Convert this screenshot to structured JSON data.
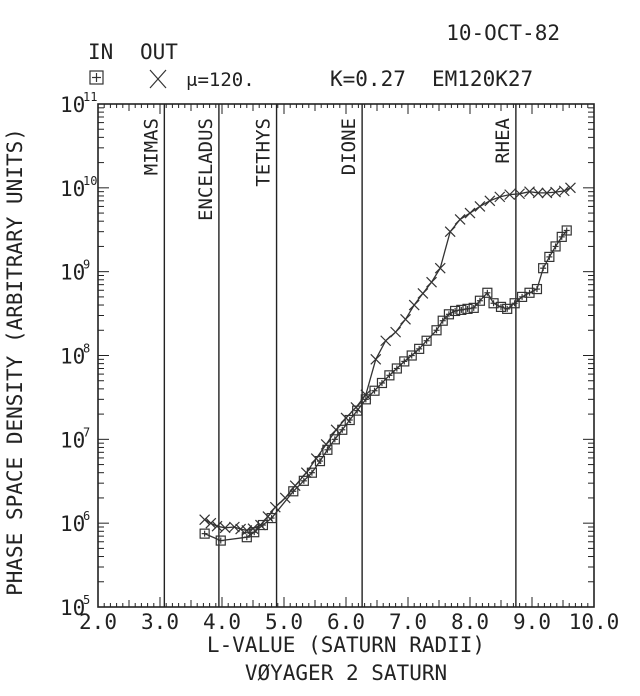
{
  "chart_data": {
    "type": "scatter",
    "date": "10-OCT-82",
    "legend": {
      "header_in": "IN",
      "header_out": "OUT",
      "mu_text": "μ=120.",
      "k_text": "K=0.27",
      "code": "EM120K27"
    },
    "xlabel": "L-VALUE (SATURN RADII)",
    "ylabel": "PHASE SPACE DENSITY (ARBITRARY UNITS)",
    "caption": "VØYAGER 2 SATURN",
    "xlim": [
      2.0,
      10.0
    ],
    "ylim": [
      100000,
      100000000000
    ],
    "log_y": true,
    "x_ticks": [
      2.0,
      3.0,
      4.0,
      5.0,
      6.0,
      7.0,
      8.0,
      9.0,
      10.0
    ],
    "x_tick_labels": [
      "2.0",
      "3.0",
      "4.0",
      "5.0",
      "6.0",
      "7.0",
      "8.0",
      "9.0",
      "10.0"
    ],
    "y_ticks": [
      {
        "value": 100000,
        "base": "10",
        "exp": "5"
      },
      {
        "value": 1000000,
        "base": "10",
        "exp": "6"
      },
      {
        "value": 10000000,
        "base": "10",
        "exp": "7"
      },
      {
        "value": 100000000,
        "base": "10",
        "exp": "8"
      },
      {
        "value": 1000000000,
        "base": "10",
        "exp": "9"
      },
      {
        "value": 10000000000,
        "base": "10",
        "exp": "10"
      },
      {
        "value": 100000000000,
        "base": "10",
        "exp": "11"
      }
    ],
    "moons": [
      {
        "name": "MIMAS",
        "l": 3.07
      },
      {
        "name": "ENCELADUS",
        "l": 3.95
      },
      {
        "name": "TETHYS",
        "l": 4.88
      },
      {
        "name": "DIONE",
        "l": 6.26
      },
      {
        "name": "RHEA",
        "l": 8.74
      }
    ],
    "series": [
      {
        "name": "IN",
        "marker": "square",
        "x": [
          3.72,
          3.98,
          4.4,
          4.52,
          4.66,
          4.8,
          5.15,
          5.32,
          5.45,
          5.58,
          5.7,
          5.82,
          5.94,
          6.06,
          6.18,
          6.32,
          6.46,
          6.58,
          6.7,
          6.82,
          6.94,
          7.06,
          7.18,
          7.3,
          7.46,
          7.56,
          7.66,
          7.76,
          7.86,
          7.96,
          8.06,
          8.16,
          8.28,
          8.38,
          8.5,
          8.6,
          8.72,
          8.84,
          8.96,
          9.08,
          9.18,
          9.28,
          9.38,
          9.48,
          9.56
        ],
        "y": [
          750000,
          620000,
          680000,
          780000,
          950000,
          1150000,
          2400000,
          3200000,
          4000000,
          5500000,
          7500000,
          10000000,
          13000000,
          17000000,
          22000000,
          30000000,
          38000000,
          47000000,
          58000000,
          70000000,
          85000000,
          100000000,
          120000000,
          150000000,
          200000000,
          260000000,
          310000000,
          340000000,
          350000000,
          360000000,
          370000000,
          450000000,
          560000000,
          420000000,
          380000000,
          360000000,
          420000000,
          500000000,
          560000000,
          620000000,
          1100000000,
          1500000000,
          2000000000,
          2600000000,
          3100000000
        ]
      },
      {
        "name": "OUT",
        "marker": "x",
        "x": [
          3.72,
          3.82,
          3.92,
          4.05,
          4.2,
          4.3,
          4.4,
          4.5,
          4.62,
          4.74,
          4.86,
          5.02,
          5.18,
          5.36,
          5.52,
          5.68,
          5.84,
          6.0,
          6.16,
          6.32,
          6.48,
          6.64,
          6.8,
          6.96,
          7.1,
          7.24,
          7.38,
          7.52,
          7.68,
          7.84,
          8.0,
          8.16,
          8.32,
          8.48,
          8.64,
          8.8,
          8.96,
          9.1,
          9.24,
          9.38,
          9.52,
          9.62
        ],
        "y": [
          1100000,
          1000000,
          920000,
          880000,
          900000,
          850000,
          820000,
          860000,
          950000,
          1200000,
          1550000,
          2000000,
          2800000,
          4000000,
          5900000,
          8700000,
          13000000,
          18000000,
          24000000,
          34000000,
          90000000,
          150000000,
          190000000,
          270000000,
          400000000,
          550000000,
          750000000,
          1100000000,
          3000000000,
          4200000000,
          5000000000,
          6000000000,
          7000000000,
          7800000000,
          8300000000,
          8500000000,
          9000000000,
          8700000000,
          8700000000,
          8900000000,
          9200000000,
          10000000000
        ]
      }
    ]
  }
}
